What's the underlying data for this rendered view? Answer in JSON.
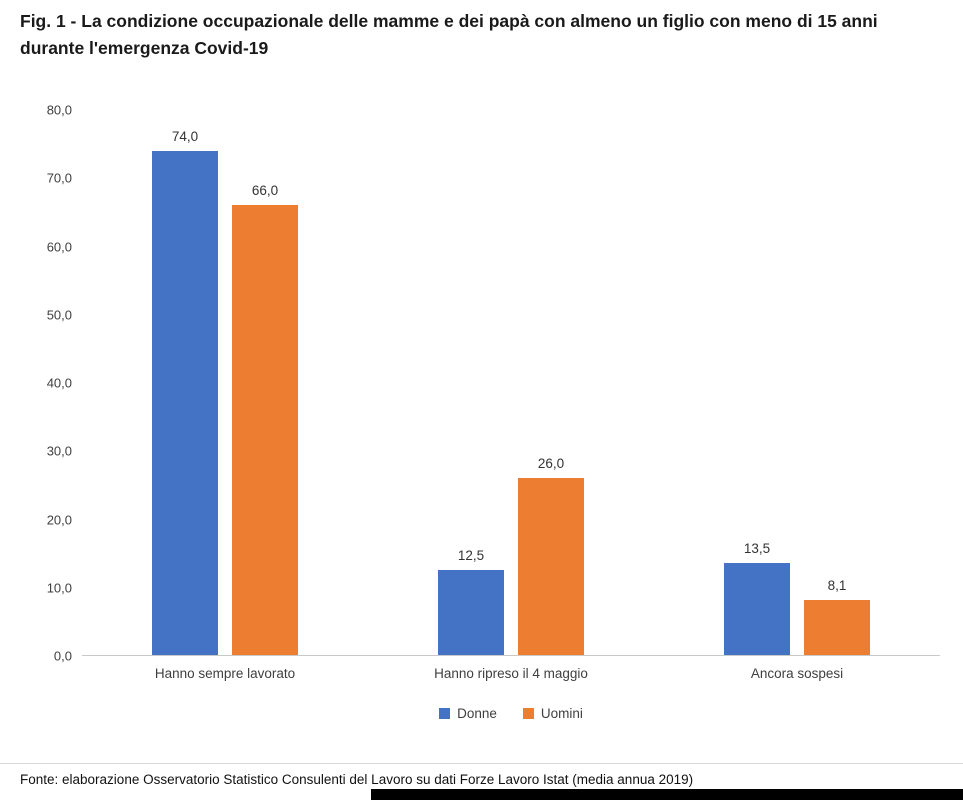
{
  "page": {
    "footer": "Fonte: elaborazione Osservatorio Statistico Consulenti del Lavoro su dati Forze Lavoro Istat (media annua 2019)"
  },
  "chart_data": {
    "type": "bar",
    "title": "Fig. 1 - La condizione occupazionale delle mamme e dei papà con almeno un figlio con meno di 15 anni durante l'emergenza Covid-19",
    "categories": [
      "Hanno sempre lavorato",
      "Hanno ripreso il 4 maggio",
      "Ancora sospesi"
    ],
    "series": [
      {
        "name": "Donne",
        "color": "#4472C4",
        "values": [
          74.0,
          12.5,
          13.5
        ],
        "labels": [
          "74,0",
          "12,5",
          "13,5"
        ]
      },
      {
        "name": "Uomini",
        "color": "#ED7D31",
        "values": [
          66.0,
          26.0,
          8.1
        ],
        "labels": [
          "66,0",
          "26,0",
          "8,1"
        ]
      }
    ],
    "xlabel": "",
    "ylabel": "",
    "ylim": [
      0,
      80
    ],
    "yticks": [
      "80,0",
      "70,0",
      "60,0",
      "50,0",
      "40,0",
      "30,0",
      "20,0",
      "10,0",
      "0,0"
    ],
    "grid": false,
    "legend_position": "bottom"
  }
}
